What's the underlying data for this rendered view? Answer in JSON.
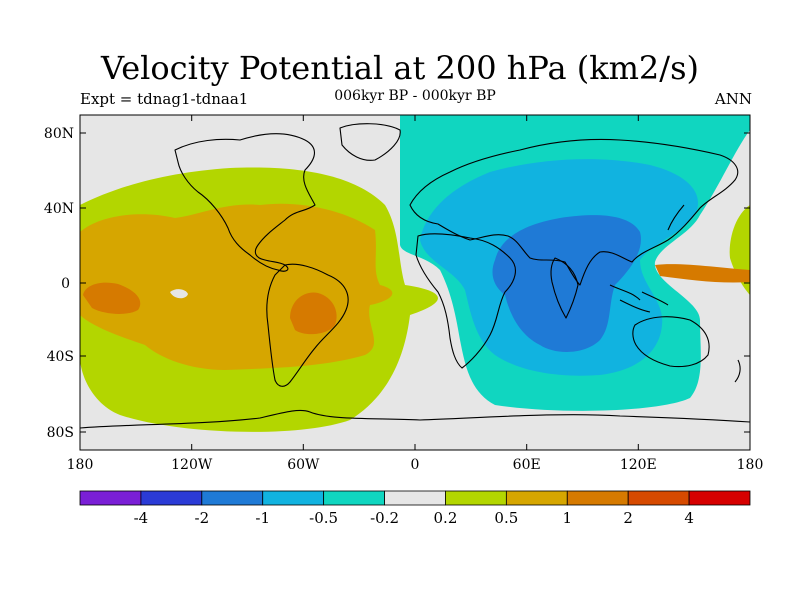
{
  "title": "Velocity Potential at 200 hPa (km2/s)",
  "subtitle_left": "Expt = tdnag1-tdnaa1",
  "subtitle_center": "006kyr BP - 000kyr BP",
  "subtitle_right": "ANN",
  "map": {
    "lon_ticks": [
      "180",
      "120W",
      "60W",
      "0",
      "60E",
      "120E",
      "180"
    ],
    "lat_ticks": [
      "80N",
      "40N",
      "0",
      "40S",
      "80S"
    ],
    "background_color": "#e6e6e6",
    "coastline_color": "#000000"
  },
  "colorbar": {
    "colors": [
      "#7a1fd6",
      "#2b3bd6",
      "#1f7ad6",
      "#11b3e0",
      "#10d6c0",
      "#e6e6e6",
      "#b3d600",
      "#d6a600",
      "#d67a00",
      "#d64a00",
      "#d60000"
    ],
    "labels": [
      "-4",
      "-2",
      "-1",
      "-0.5",
      "-0.2",
      "0.2",
      "0.5",
      "1",
      "2",
      "4"
    ]
  }
}
